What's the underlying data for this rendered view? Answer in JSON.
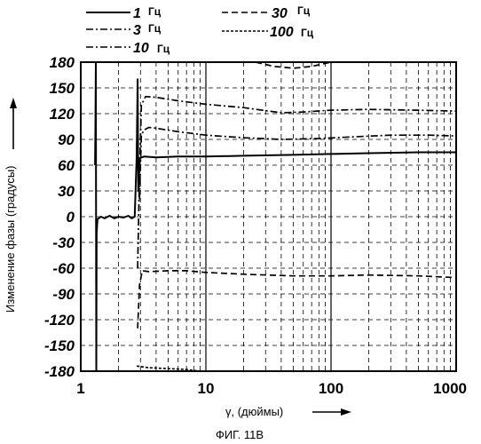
{
  "chart_data": {
    "type": "line",
    "xscale": "log",
    "xlim": [
      1,
      1000
    ],
    "ylim": [
      -180,
      180
    ],
    "xticks": [
      "1",
      "10",
      "100",
      "1000"
    ],
    "yticks": [
      "180",
      "150",
      "120",
      "90",
      "60",
      "30",
      "0",
      "-30",
      "-60",
      "-90",
      "-120",
      "-150",
      "-180"
    ],
    "xlabel": "γ,   (дюймы)",
    "ylabel": "Изменение фазы  (градусы)",
    "caption": "ФИГ. 11В",
    "grid": true,
    "legend_position": "top",
    "series": [
      {
        "name": "1",
        "unit": "Гц",
        "style": "solid",
        "points": [
          [
            1.3,
            60
          ],
          [
            1.31,
            100
          ],
          [
            1.32,
            180
          ],
          [
            1.33,
            -180
          ],
          [
            1.34,
            -20
          ],
          [
            1.36,
            -3
          ],
          [
            1.45,
            0
          ],
          [
            1.55,
            -2
          ],
          [
            1.7,
            1
          ],
          [
            1.85,
            -2
          ],
          [
            2.0,
            0
          ],
          [
            2.2,
            -1
          ],
          [
            2.4,
            1
          ],
          [
            2.55,
            -2
          ],
          [
            2.7,
            0
          ],
          [
            2.8,
            70
          ],
          [
            2.85,
            160
          ],
          [
            2.88,
            30
          ],
          [
            2.95,
            68
          ],
          [
            3.2,
            70
          ],
          [
            4,
            69
          ],
          [
            6,
            70
          ],
          [
            10,
            70
          ],
          [
            20,
            71
          ],
          [
            50,
            72
          ],
          [
            100,
            73
          ],
          [
            200,
            74
          ],
          [
            500,
            75
          ],
          [
            1000,
            75
          ]
        ]
      },
      {
        "name": "3",
        "unit": "Гц",
        "style": "dash-dot",
        "points": [
          [
            2.95,
            20
          ],
          [
            3.05,
            95
          ],
          [
            3.2,
            101
          ],
          [
            3.5,
            104
          ],
          [
            4,
            103
          ],
          [
            6,
            99
          ],
          [
            10,
            95
          ],
          [
            20,
            92
          ],
          [
            40,
            90
          ],
          [
            80,
            91
          ],
          [
            150,
            93
          ],
          [
            300,
            95
          ],
          [
            600,
            95
          ],
          [
            1000,
            94
          ]
        ]
      },
      {
        "name": "10",
        "unit": "Гц",
        "style": "dash-dot",
        "points": [
          [
            2.85,
            -60
          ],
          [
            2.95,
            50
          ],
          [
            3.05,
            130
          ],
          [
            3.3,
            140
          ],
          [
            4,
            139
          ],
          [
            6,
            135
          ],
          [
            10,
            131
          ],
          [
            20,
            127
          ],
          [
            40,
            121
          ],
          [
            60,
            122
          ],
          [
            100,
            124
          ],
          [
            200,
            125
          ],
          [
            500,
            124
          ],
          [
            1000,
            123
          ]
        ]
      },
      {
        "name": "30",
        "unit": "Гц",
        "style": "dashed",
        "points": [
          [
            2.85,
            -130
          ],
          [
            2.95,
            -80
          ],
          [
            3.1,
            -63
          ],
          [
            3.5,
            -64
          ],
          [
            5,
            -63
          ],
          [
            7,
            -63
          ],
          [
            10,
            -65
          ],
          [
            20,
            -67
          ],
          [
            50,
            -69
          ],
          [
            100,
            -69
          ],
          [
            200,
            -68
          ],
          [
            500,
            -69
          ],
          [
            1000,
            -71
          ]
        ]
      },
      {
        "name": "100",
        "unit": "Гц",
        "style": "dashed",
        "points": [
          [
            2.8,
            -174
          ],
          [
            3.5,
            -176
          ],
          [
            5,
            -177
          ],
          [
            7,
            -178
          ],
          [
            9,
            -180
          ]
        ]
      },
      {
        "name": "",
        "unit": "",
        "style": "dashed",
        "points": [
          [
            25,
            180
          ],
          [
            35,
            175
          ],
          [
            50,
            173
          ],
          [
            70,
            175
          ],
          [
            100,
            180
          ]
        ]
      }
    ]
  }
}
